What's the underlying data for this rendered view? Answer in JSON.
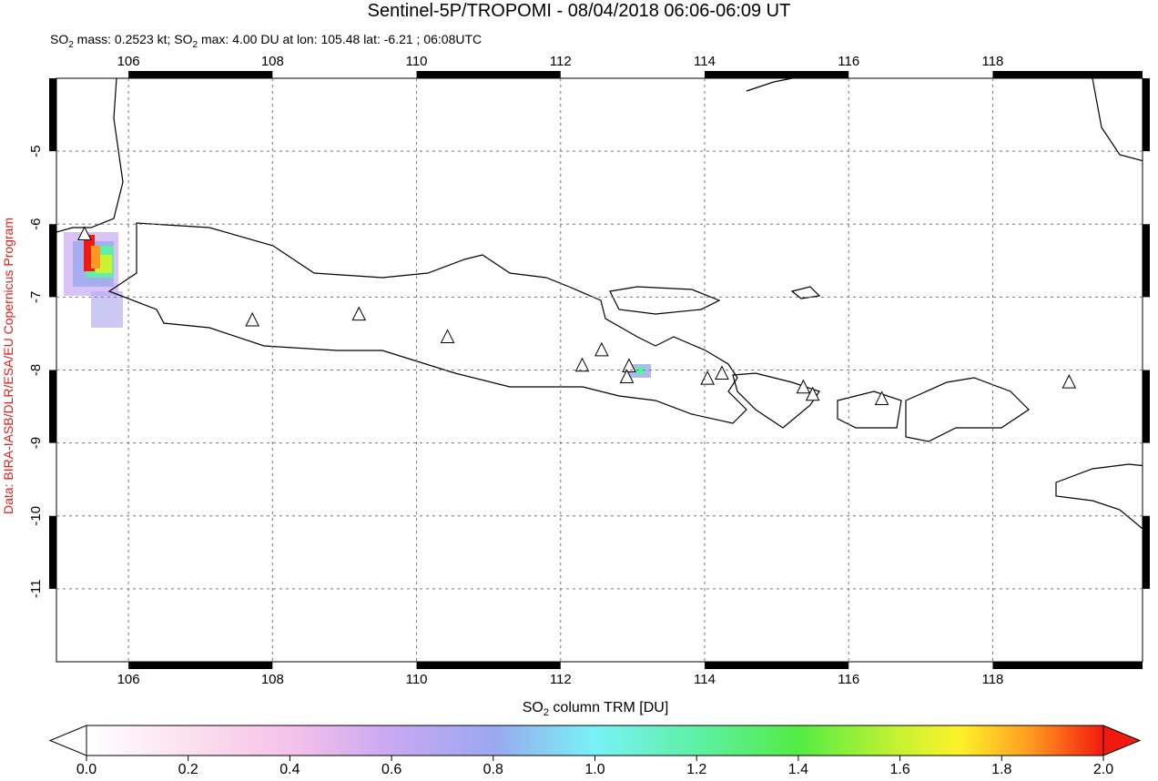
{
  "header": {
    "title": "Sentinel-5P/TROPOMI - 08/04/2018 06:06-06:09 UT",
    "subtitle": [
      "SO",
      "2",
      " mass: 0.2523 kt; SO",
      "2",
      " max: 4.00 DU at lon: 105.48 lat: -6.21 ; 06:08UTC"
    ]
  },
  "side_note": "Data: BIRA-IASB/DLR/ESA/EU Copernicus Program",
  "map": {
    "lonlim": [
      105,
      120.08
    ],
    "latlim": [
      -12,
      -4
    ],
    "lonticks": [
      106,
      108,
      110,
      112,
      114,
      116,
      118
    ],
    "latticks": [
      -5,
      -6,
      -7,
      -8,
      -9,
      -10,
      -11
    ],
    "volcanoes": [
      [
        105.39,
        -6.14
      ],
      [
        107.72,
        -7.32
      ],
      [
        109.2,
        -7.24
      ],
      [
        110.43,
        -7.55
      ],
      [
        112.3,
        -7.94
      ],
      [
        112.57,
        -7.73
      ],
      [
        112.95,
        -7.95
      ],
      [
        112.92,
        -8.1
      ],
      [
        114.04,
        -8.12
      ],
      [
        114.24,
        -8.05
      ],
      [
        115.37,
        -8.24
      ],
      [
        115.5,
        -8.34
      ],
      [
        116.46,
        -8.4
      ],
      [
        119.06,
        -8.17
      ]
    ]
  },
  "colorbar": {
    "label": [
      "SO",
      "2",
      " column TRM [DU]"
    ],
    "lim": [
      0,
      2
    ],
    "ticks": [
      {
        "value": 0,
        "label": "0.0"
      },
      {
        "value": 0.2,
        "label": "0.2"
      },
      {
        "value": 0.4,
        "label": "0.4"
      },
      {
        "value": 0.6,
        "label": "0.6"
      },
      {
        "value": 0.8,
        "label": "0.8"
      },
      {
        "value": 1,
        "label": "1.0"
      },
      {
        "value": 1.2,
        "label": "1.2"
      },
      {
        "value": 1.4,
        "label": "1.4"
      },
      {
        "value": 1.6,
        "label": "1.6"
      },
      {
        "value": 1.8,
        "label": "1.8"
      },
      {
        "value": 2,
        "label": "2.0"
      }
    ]
  }
}
